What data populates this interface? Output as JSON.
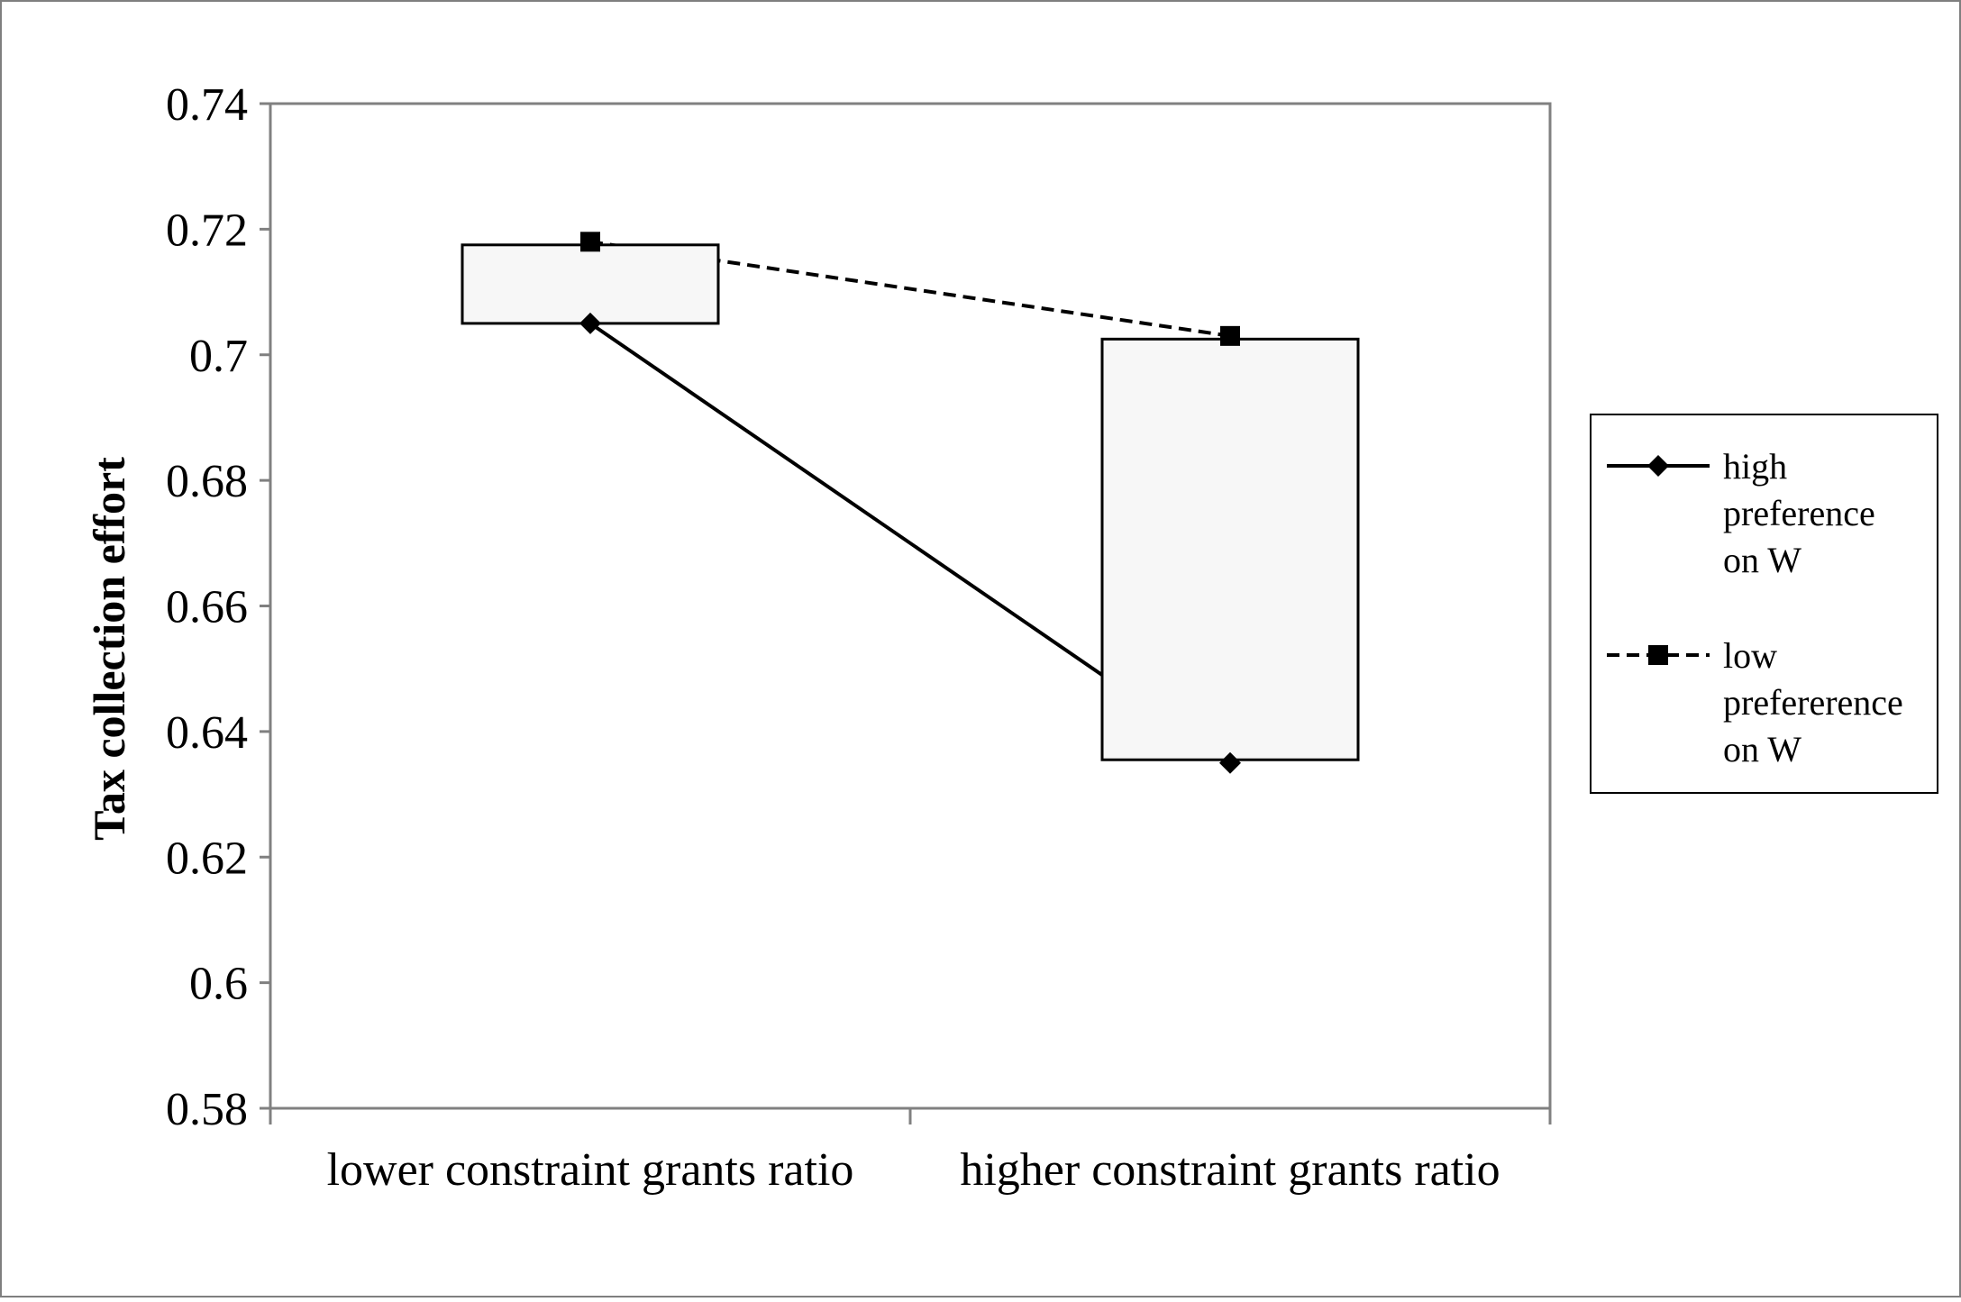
{
  "chart_data": {
    "type": "line",
    "title": "",
    "xlabel": "",
    "ylabel": "Tax collection effort",
    "ylim": [
      0.58,
      0.74
    ],
    "ytick_step": 0.02,
    "yticks": [
      "0.58",
      "0.6",
      "0.62",
      "0.64",
      "0.66",
      "0.68",
      "0.7",
      "0.72",
      "0.74"
    ],
    "categories": [
      "lower constraint grants ratio",
      "higher constraint grants ratio"
    ],
    "series": [
      {
        "name": "high preference on W",
        "name_lines": [
          "high",
          "preference",
          "on W"
        ],
        "line_style": "solid",
        "marker": "diamond",
        "values": [
          0.705,
          0.635
        ]
      },
      {
        "name": "low prefererence on W",
        "name_lines": [
          "low",
          "prefererence",
          "on W"
        ],
        "line_style": "dashed",
        "marker": "square",
        "values": [
          0.718,
          0.703
        ]
      }
    ],
    "boxes": [
      {
        "low": 0.705,
        "high": 0.7175
      },
      {
        "low": 0.6355,
        "high": 0.7025
      }
    ],
    "grid": false,
    "legend_position": "right",
    "colors": {
      "line": "#000000",
      "box_fill": "#f7f7f7",
      "axis": "#808080"
    }
  }
}
